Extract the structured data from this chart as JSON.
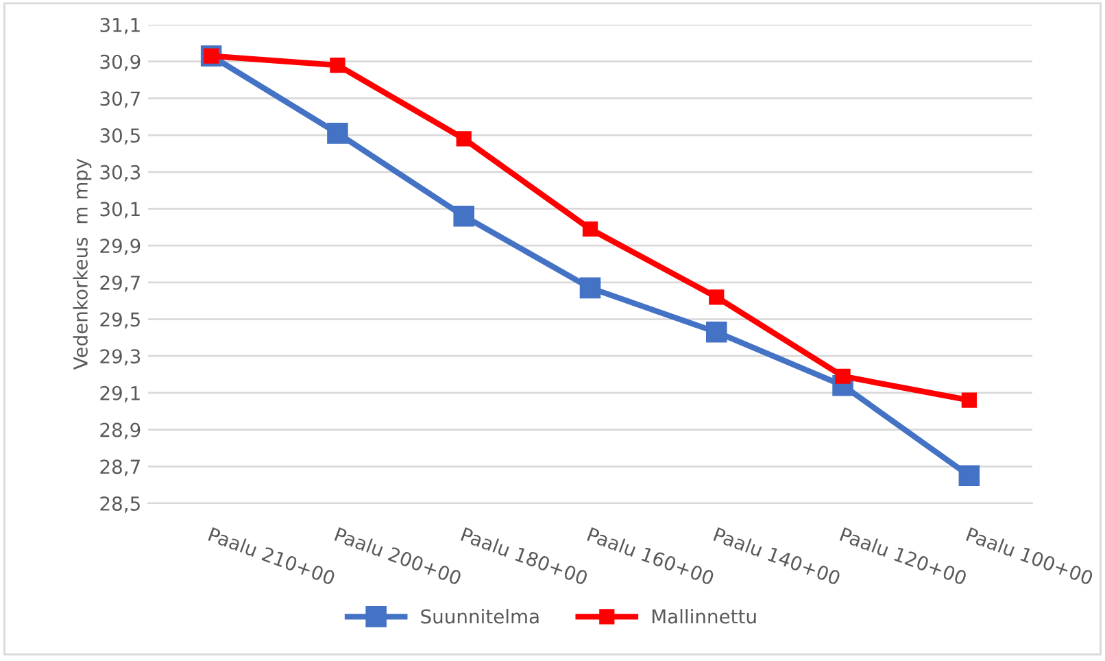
{
  "chart_data": {
    "type": "line",
    "ylabel": "Vedenkorkeus  m mpy",
    "categories": [
      "Paalu 210+00",
      "Paalu 200+00",
      "Paalu 180+00",
      "Paalu 160+00",
      "Paalu 140+00",
      "Paalu 120+00",
      "Paalu 100+00"
    ],
    "series": [
      {
        "name": "Suunnitelma",
        "color": "#4472c4",
        "values": [
          30.93,
          30.51,
          30.06,
          29.67,
          29.43,
          29.14,
          28.65
        ]
      },
      {
        "name": "Mallinnettu",
        "color": "#ff0000",
        "values": [
          30.93,
          30.88,
          30.48,
          29.99,
          29.62,
          29.19,
          29.06
        ]
      }
    ],
    "ylim": [
      28.5,
      31.1
    ],
    "yticks": [
      {
        "value": 28.5,
        "label": "28,5"
      },
      {
        "value": 28.7,
        "label": "28,7"
      },
      {
        "value": 28.9,
        "label": "28,9"
      },
      {
        "value": 29.1,
        "label": "29,1"
      },
      {
        "value": 29.3,
        "label": "29,3"
      },
      {
        "value": 29.5,
        "label": "29,5"
      },
      {
        "value": 29.7,
        "label": "29,7"
      },
      {
        "value": 29.9,
        "label": "29,9"
      },
      {
        "value": 30.1,
        "label": "30,1"
      },
      {
        "value": 30.3,
        "label": "30,3"
      },
      {
        "value": 30.5,
        "label": "30,5"
      },
      {
        "value": 30.7,
        "label": "30,7"
      },
      {
        "value": 30.9,
        "label": "30,9"
      },
      {
        "value": 31.1,
        "label": "31,1"
      }
    ],
    "grid": "y",
    "legend": "bottom",
    "marker": "square",
    "line_style": "solid"
  }
}
